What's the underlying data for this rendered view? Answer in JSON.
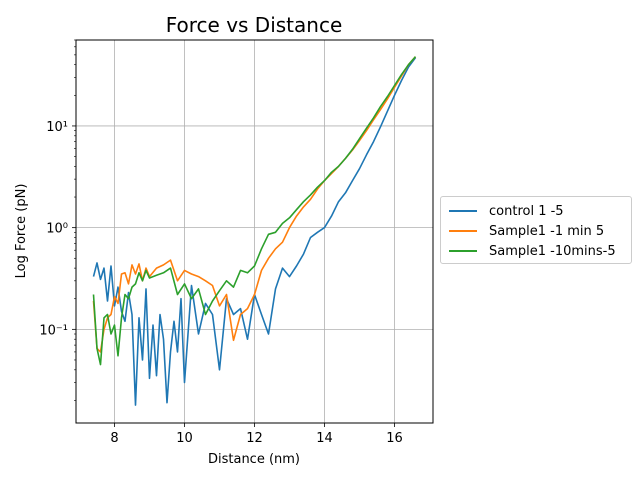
{
  "chart_data": {
    "type": "line",
    "title": "Force vs Distance",
    "xlabel": "Distance (nm)",
    "ylabel": "Log Force (pN)",
    "xlim": [
      6.9,
      17.1
    ],
    "ylim": [
      0.012,
      70
    ],
    "yscale": "log",
    "grid": true,
    "legend_position": "outside-right",
    "x_ticks": [
      "8",
      "10",
      "12",
      "14",
      "16"
    ],
    "y_ticks": [
      "10⁻¹",
      "10⁰",
      "10¹"
    ],
    "series": [
      {
        "name": "control 1 -5",
        "color": "#1f77b4",
        "x": [
          7.4,
          7.5,
          7.6,
          7.7,
          7.8,
          7.9,
          8.0,
          8.1,
          8.2,
          8.3,
          8.4,
          8.5,
          8.6,
          8.7,
          8.8,
          8.9,
          9.0,
          9.1,
          9.2,
          9.3,
          9.4,
          9.5,
          9.6,
          9.7,
          9.8,
          9.9,
          10.0,
          10.2,
          10.4,
          10.6,
          10.8,
          11.0,
          11.2,
          11.4,
          11.6,
          11.8,
          12.0,
          12.2,
          12.4,
          12.6,
          12.8,
          13.0,
          13.2,
          13.4,
          13.6,
          13.8,
          14.0,
          14.2,
          14.4,
          14.6,
          14.8,
          15.0,
          15.2,
          15.4,
          15.6,
          15.8,
          16.0,
          16.2,
          16.4,
          16.6
        ],
        "y": [
          0.33,
          0.45,
          0.31,
          0.4,
          0.19,
          0.42,
          0.17,
          0.26,
          0.15,
          0.12,
          0.23,
          0.14,
          0.018,
          0.13,
          0.05,
          0.25,
          0.033,
          0.11,
          0.035,
          0.14,
          0.08,
          0.019,
          0.06,
          0.12,
          0.06,
          0.2,
          0.03,
          0.27,
          0.09,
          0.18,
          0.14,
          0.04,
          0.2,
          0.14,
          0.16,
          0.08,
          0.22,
          0.14,
          0.09,
          0.25,
          0.4,
          0.33,
          0.42,
          0.55,
          0.8,
          0.9,
          1.0,
          1.3,
          1.8,
          2.2,
          2.9,
          3.8,
          5.2,
          7.0,
          9.8,
          14.0,
          20.0,
          28.0,
          38.0,
          47.0
        ]
      },
      {
        "name": "Sample1 -1 min 5",
        "color": "#ff7f0e",
        "x": [
          7.4,
          7.5,
          7.6,
          7.7,
          7.8,
          7.9,
          8.0,
          8.1,
          8.2,
          8.3,
          8.4,
          8.5,
          8.6,
          8.7,
          8.8,
          8.9,
          9.0,
          9.2,
          9.4,
          9.6,
          9.8,
          10.0,
          10.2,
          10.4,
          10.6,
          10.8,
          11.0,
          11.2,
          11.4,
          11.6,
          11.8,
          12.0,
          12.2,
          12.4,
          12.6,
          12.8,
          13.0,
          13.2,
          13.4,
          13.6,
          13.8,
          14.0,
          14.2,
          14.4,
          14.6,
          14.8,
          15.0,
          15.2,
          15.4,
          15.6,
          15.8,
          16.0,
          16.2,
          16.4,
          16.6
        ],
        "y": [
          0.19,
          0.065,
          0.06,
          0.1,
          0.13,
          0.14,
          0.21,
          0.18,
          0.35,
          0.36,
          0.28,
          0.43,
          0.35,
          0.44,
          0.3,
          0.4,
          0.33,
          0.4,
          0.43,
          0.48,
          0.3,
          0.38,
          0.35,
          0.33,
          0.3,
          0.27,
          0.17,
          0.22,
          0.078,
          0.14,
          0.16,
          0.22,
          0.38,
          0.5,
          0.62,
          0.72,
          1.0,
          1.3,
          1.6,
          1.9,
          2.4,
          2.9,
          3.4,
          4.0,
          4.8,
          5.8,
          7.2,
          9.0,
          11.5,
          14.5,
          18.5,
          24.0,
          31.0,
          40.0,
          48.0
        ]
      },
      {
        "name": "Sample1 -10mins-5",
        "color": "#2ca02c",
        "x": [
          7.4,
          7.5,
          7.6,
          7.7,
          7.8,
          7.9,
          8.0,
          8.1,
          8.2,
          8.3,
          8.4,
          8.5,
          8.6,
          8.7,
          8.8,
          8.9,
          9.0,
          9.2,
          9.4,
          9.6,
          9.8,
          10.0,
          10.2,
          10.4,
          10.6,
          10.8,
          11.0,
          11.2,
          11.4,
          11.6,
          11.8,
          12.0,
          12.2,
          12.4,
          12.6,
          12.8,
          13.0,
          13.2,
          13.4,
          13.6,
          13.8,
          14.0,
          14.2,
          14.4,
          14.6,
          14.8,
          15.0,
          15.2,
          15.4,
          15.6,
          15.8,
          16.0,
          16.2,
          16.4,
          16.6
        ],
        "y": [
          0.22,
          0.065,
          0.045,
          0.13,
          0.14,
          0.09,
          0.11,
          0.055,
          0.13,
          0.22,
          0.2,
          0.26,
          0.28,
          0.36,
          0.3,
          0.38,
          0.32,
          0.34,
          0.36,
          0.4,
          0.22,
          0.28,
          0.2,
          0.25,
          0.14,
          0.19,
          0.24,
          0.3,
          0.26,
          0.38,
          0.36,
          0.42,
          0.62,
          0.86,
          0.9,
          1.1,
          1.25,
          1.5,
          1.8,
          2.1,
          2.5,
          2.9,
          3.5,
          4.0,
          4.8,
          5.9,
          7.5,
          9.5,
          12.0,
          15.5,
          19.5,
          25.0,
          32.0,
          40.0,
          48.0
        ]
      }
    ]
  }
}
